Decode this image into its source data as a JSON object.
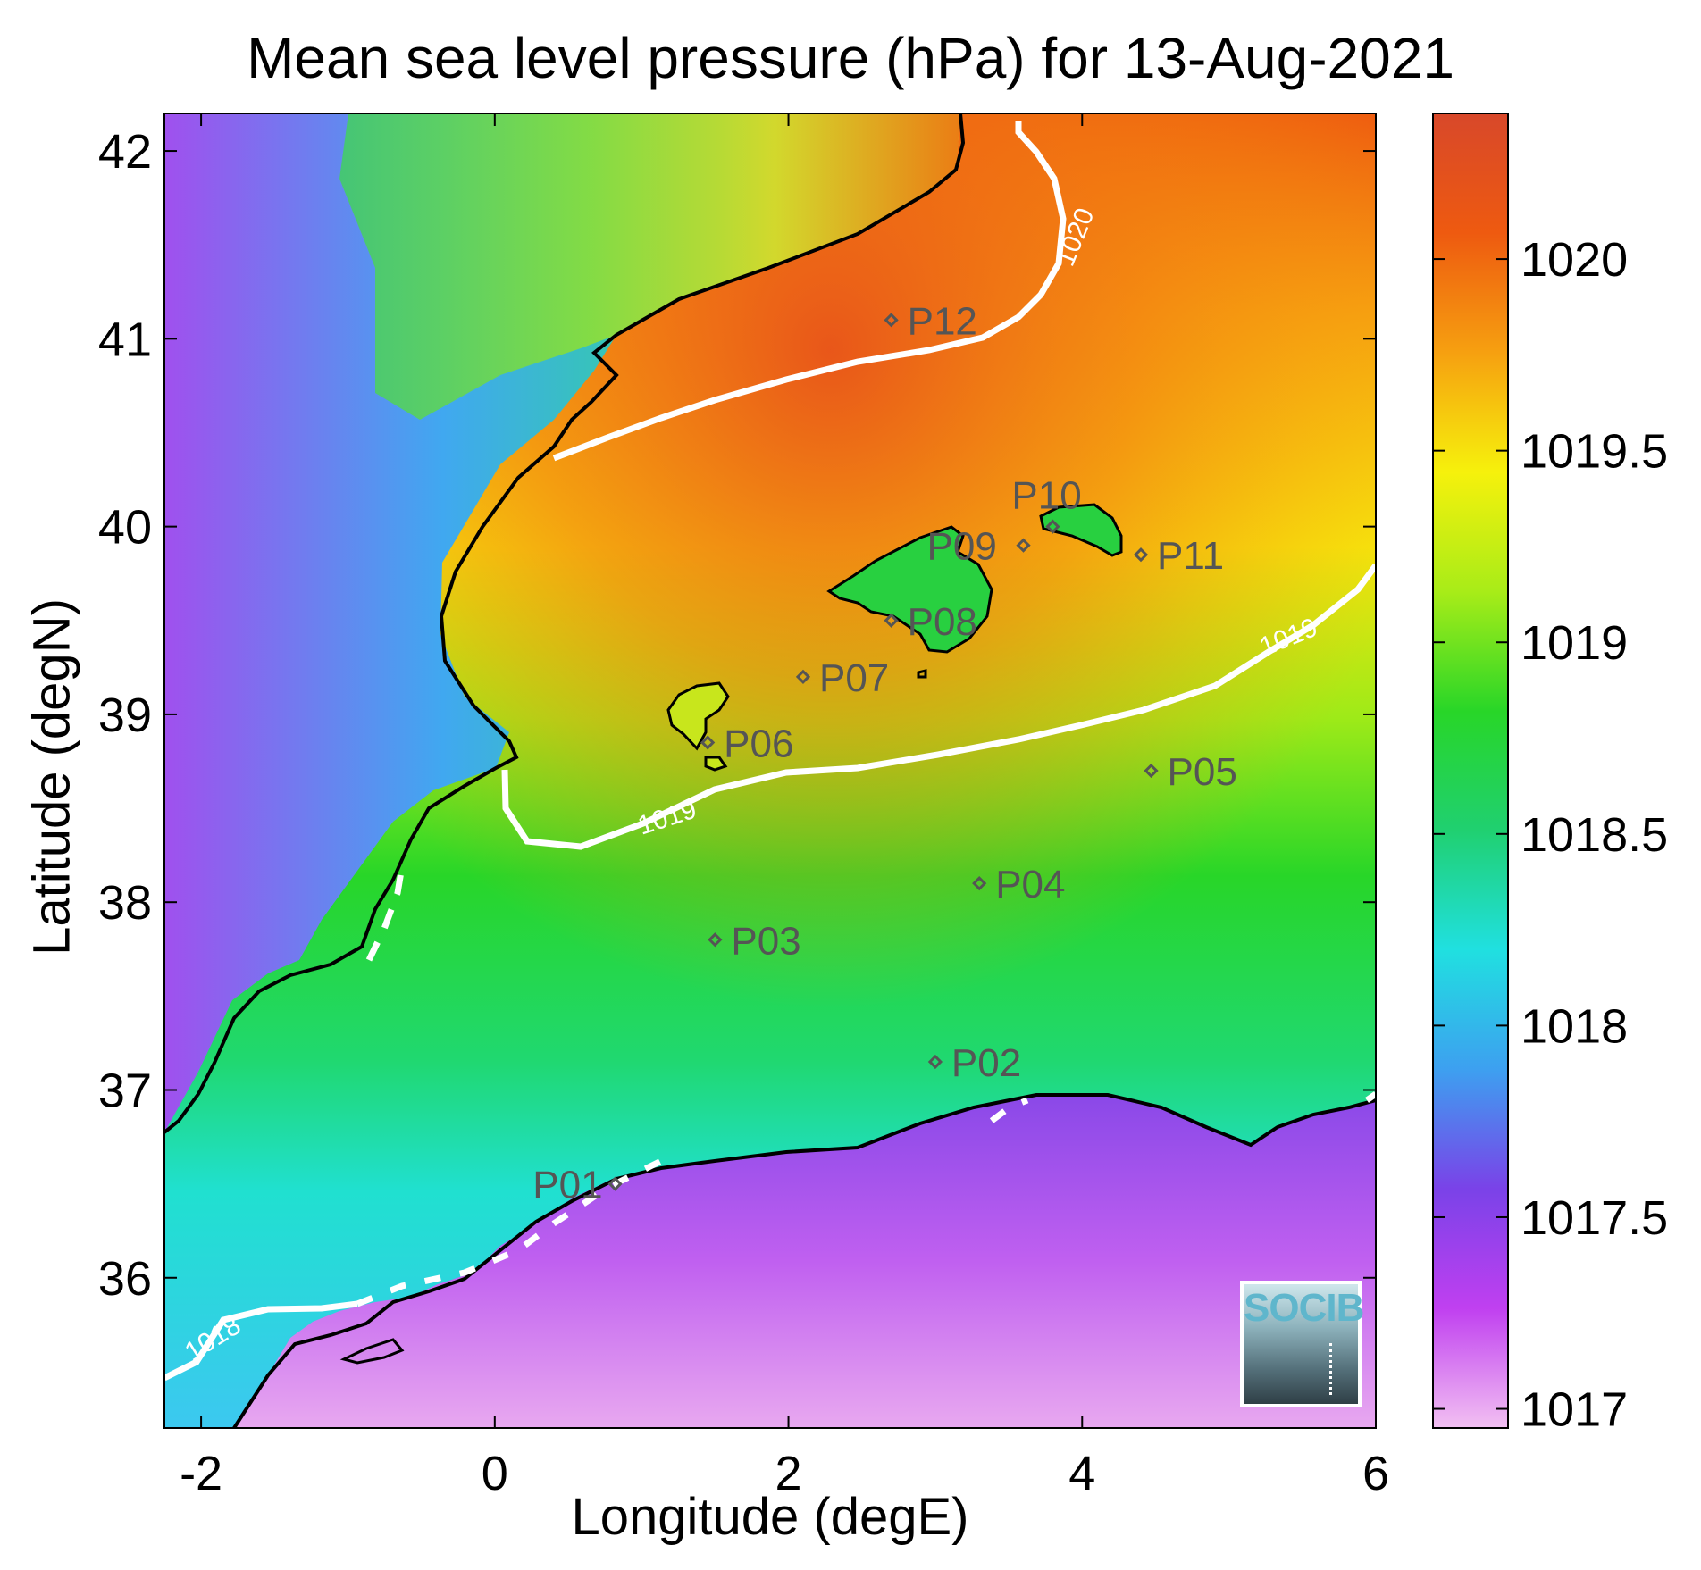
{
  "title": "Mean sea level pressure (hPa) for 13-Aug-2021",
  "axes": {
    "xlabel": "Longitude (degE)",
    "ylabel": "Latitude (degN)",
    "xlim": [
      -2.25,
      6
    ],
    "ylim": [
      35.2,
      42.2
    ],
    "x_ticks": [
      -2,
      0,
      2,
      4,
      6
    ],
    "x_tick_labels": [
      "-2",
      "0",
      "2",
      "4",
      "6"
    ],
    "y_ticks": [
      36,
      37,
      38,
      39,
      40,
      41,
      42
    ],
    "y_tick_labels": [
      "36",
      "37",
      "38",
      "39",
      "40",
      "41",
      "42"
    ]
  },
  "colorbar": {
    "range": [
      1016.95,
      1020.38
    ],
    "ticks": [
      1017,
      1017.5,
      1018,
      1018.5,
      1019,
      1019.5,
      1020
    ],
    "tick_labels": [
      "1017",
      "1017.5",
      "1018",
      "1018.5",
      "1019",
      "1019.5",
      "1020"
    ],
    "colormap": [
      "#f2c0f2",
      "#c040f0",
      "#7a42e8",
      "#3da0f0",
      "#20e0e0",
      "#20d070",
      "#28d628",
      "#a8ec18",
      "#f6f10c",
      "#f6a010",
      "#ee5a10",
      "#d8482a"
    ]
  },
  "contours": [
    {
      "label": "1020",
      "color": "#ffffff"
    },
    {
      "label": "1019",
      "color": "#ffffff"
    },
    {
      "label": "1018",
      "color": "#ffffff"
    }
  ],
  "stations": [
    {
      "name": "P01",
      "lon": 0.82,
      "lat": 36.5
    },
    {
      "name": "P02",
      "lon": 3.0,
      "lat": 37.15
    },
    {
      "name": "P03",
      "lon": 1.5,
      "lat": 37.8
    },
    {
      "name": "P04",
      "lon": 3.3,
      "lat": 38.1
    },
    {
      "name": "P05",
      "lon": 4.47,
      "lat": 38.7
    },
    {
      "name": "P06",
      "lon": 1.45,
      "lat": 38.85
    },
    {
      "name": "P07",
      "lon": 2.1,
      "lat": 39.2
    },
    {
      "name": "P08",
      "lon": 2.7,
      "lat": 39.5
    },
    {
      "name": "P09",
      "lon": 3.6,
      "lat": 39.9
    },
    {
      "name": "P10",
      "lon": 3.8,
      "lat": 40.0
    },
    {
      "name": "P11",
      "lon": 4.4,
      "lat": 39.85
    },
    {
      "name": "P12",
      "lon": 2.7,
      "lat": 41.1
    }
  ],
  "logo_text": "SOCIB"
}
